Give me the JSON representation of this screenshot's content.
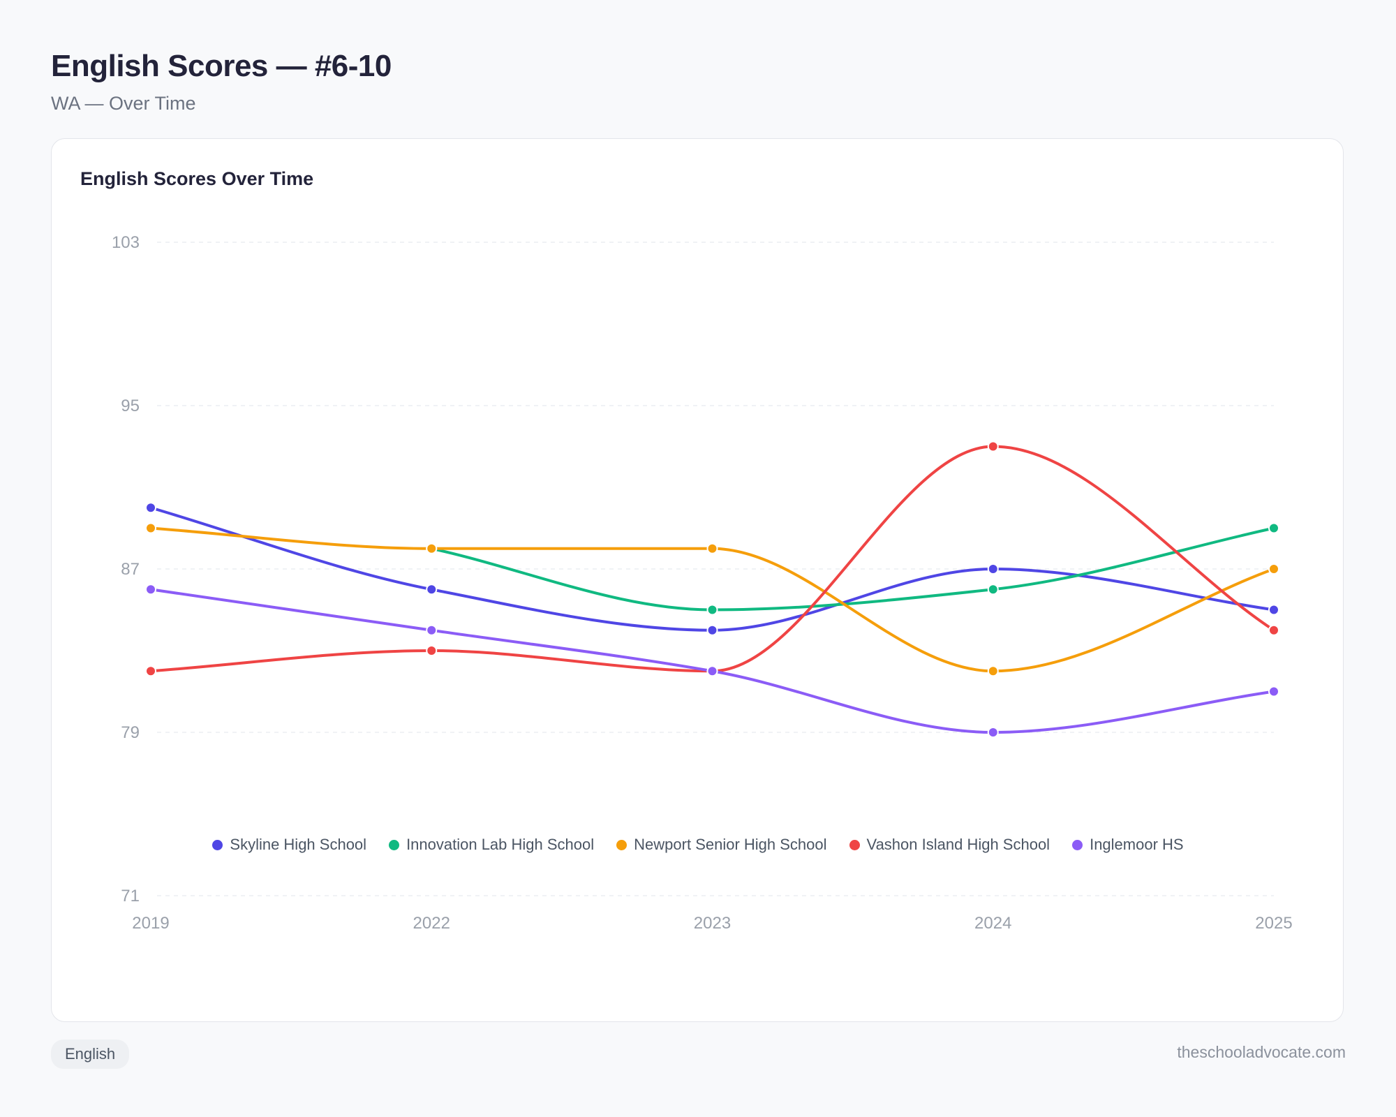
{
  "header": {
    "title": "English Scores — #6-10",
    "subtitle": "WA — Over Time"
  },
  "card": {
    "title": "English Scores Over Time"
  },
  "footer": {
    "tag": "English",
    "site": "theschooladvocate.com"
  },
  "chart_data": {
    "type": "line",
    "title": "English Scores Over Time",
    "xlabel": "",
    "ylabel": "",
    "x": [
      "2019",
      "2022",
      "2023",
      "2024",
      "2025"
    ],
    "ylim": [
      71,
      103
    ],
    "yticks": [
      103,
      95,
      87,
      79,
      71
    ],
    "grid": true,
    "legend_position": "bottom",
    "series": [
      {
        "name": "Skyline High School",
        "color": "#4f46e5",
        "values": [
          90,
          86,
          84,
          87,
          85
        ]
      },
      {
        "name": "Innovation Lab High School",
        "color": "#10b981",
        "values": [
          null,
          88,
          85,
          86,
          89
        ]
      },
      {
        "name": "Newport Senior High School",
        "color": "#f59e0b",
        "values": [
          89,
          88,
          88,
          82,
          87
        ]
      },
      {
        "name": "Vashon Island High School",
        "color": "#ef4444",
        "values": [
          82,
          83,
          82,
          93,
          84
        ]
      },
      {
        "name": "Inglemoor HS",
        "color": "#8b5cf6",
        "values": [
          86,
          84,
          82,
          79,
          81
        ]
      }
    ]
  }
}
